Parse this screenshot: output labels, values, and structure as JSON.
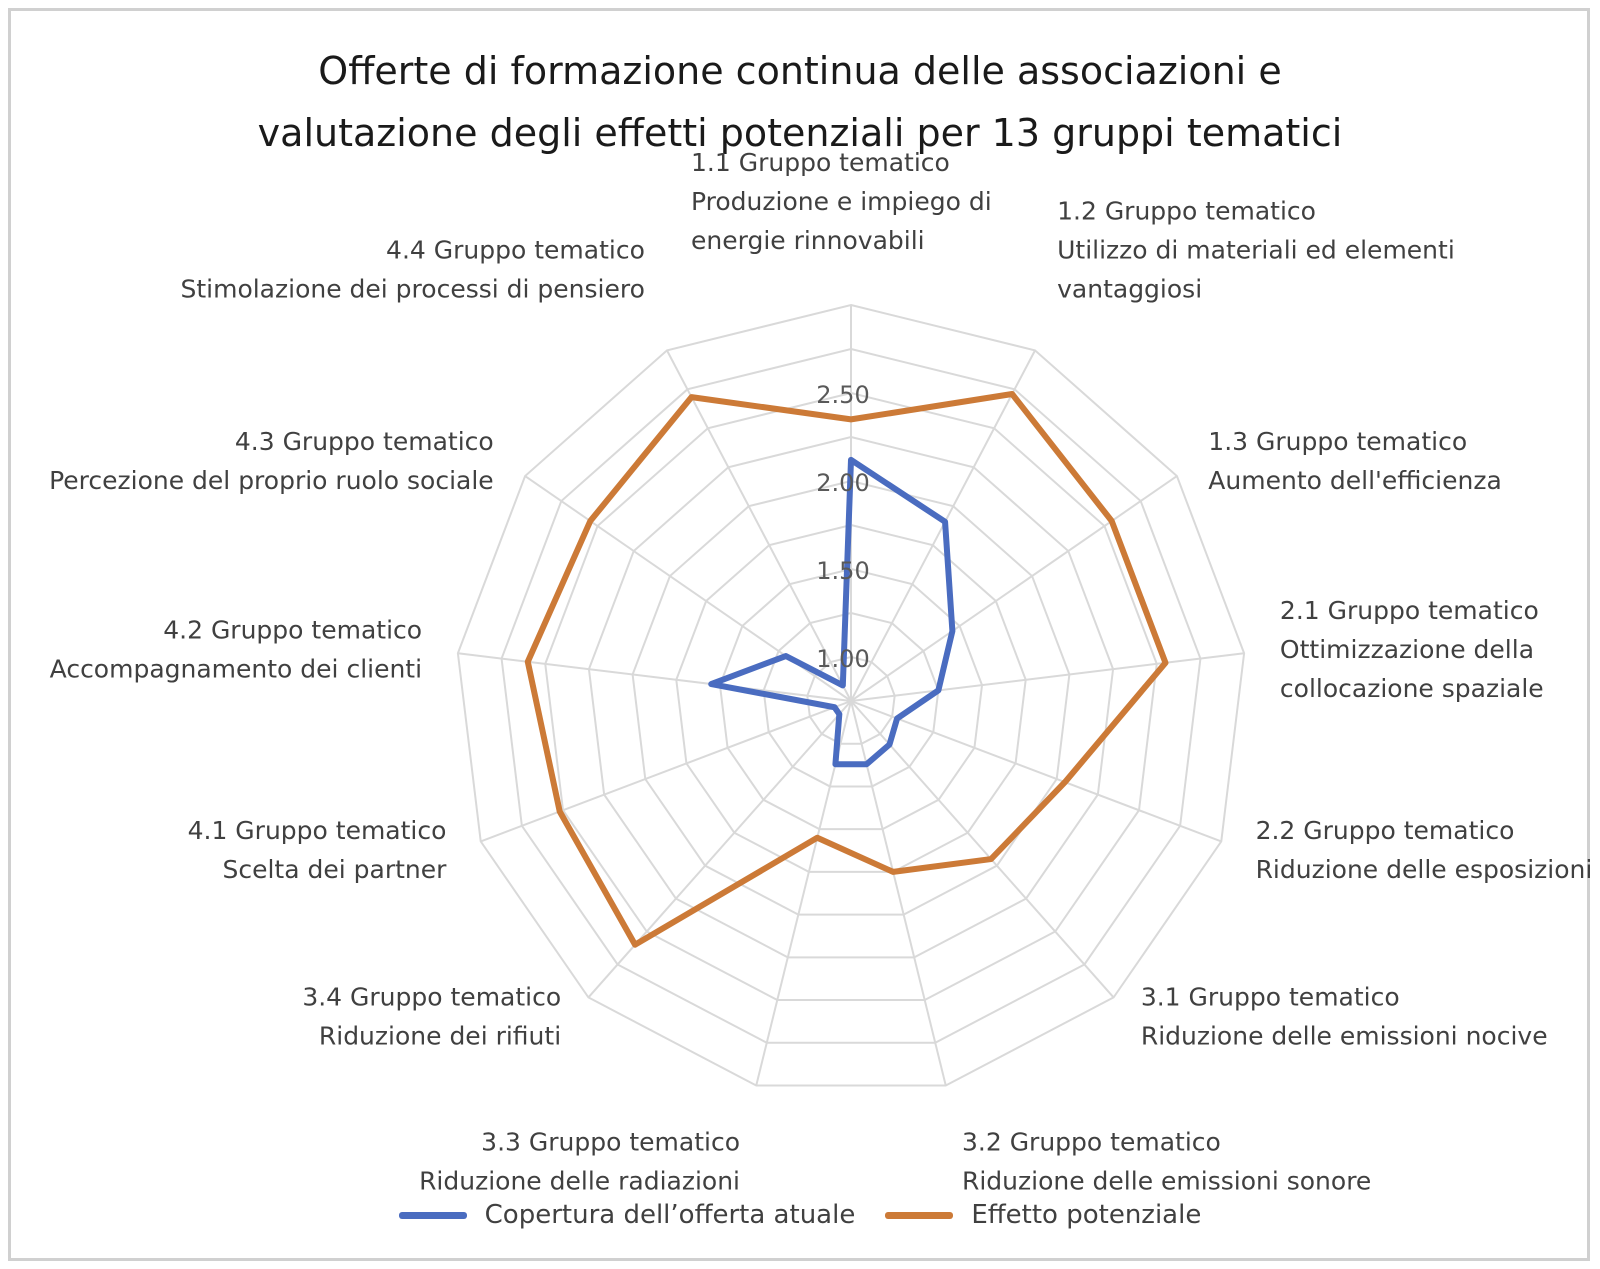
{
  "title_line1": "Offerte di formazione continua delle associazioni e",
  "title_line2": "valutazione degli effetti potenziali per 13 gruppi tematici",
  "chart_data": {
    "type": "radar",
    "title": "Offerte di formazione continua delle associazioni e valutazione degli effetti potenziali per 13 gruppi tematici",
    "categories": [
      [
        "1.1 Gruppo tematico",
        "Produzione e impiego di",
        "energie rinnovabili"
      ],
      [
        "1.2 Gruppo tematico",
        "Utilizzo di materiali ed elementi",
        "vantaggiosi"
      ],
      [
        "1.3 Gruppo tematico",
        "Aumento dell'efficienza"
      ],
      [
        "2.1 Gruppo tematico",
        "Ottimizzazione della",
        "collocazione spaziale"
      ],
      [
        "2.2 Gruppo tematico",
        "Riduzione delle esposizioni"
      ],
      [
        "3.1 Gruppo tematico",
        "Riduzione delle emissioni nocive"
      ],
      [
        "3.2 Gruppo tematico",
        "Riduzione delle emissioni sonore"
      ],
      [
        "3.3 Gruppo tematico",
        "Riduzione delle radiazioni"
      ],
      [
        "3.4 Gruppo tematico",
        "Riduzione dei rifiuti"
      ],
      [
        "4.1 Gruppo tematico",
        "Scelta dei partner"
      ],
      [
        "4.2 Gruppo tematico",
        "Accompagnamento dei clienti"
      ],
      [
        "4.3 Gruppo tematico",
        "Percezione del proprio ruolo sociale"
      ],
      [
        "4.4 Gruppo tematico",
        "Stimolazione dei processi di pensiero"
      ]
    ],
    "series": [
      {
        "name": "Copertura dell’offerta atuale",
        "color": "#4a6cc0",
        "values": [
          2.12,
          1.9,
          1.45,
          1.25,
          1.03,
          1.08,
          1.12,
          1.12,
          0.85,
          0.85,
          1.55,
          1.2,
          0.85
        ]
      },
      {
        "name": "Effetto potenziale",
        "color": "#cc7a37",
        "values": [
          2.35,
          2.72,
          2.55,
          2.55,
          2.05,
          1.95,
          1.75,
          1.55,
          2.6,
          2.52,
          2.6,
          2.55,
          2.7
        ]
      }
    ],
    "rlim": [
      0.75,
      3.0
    ],
    "ticks": [
      "1.00",
      "1.50",
      "2.00",
      "2.50"
    ],
    "grid": true,
    "legend_position": "bottom"
  }
}
